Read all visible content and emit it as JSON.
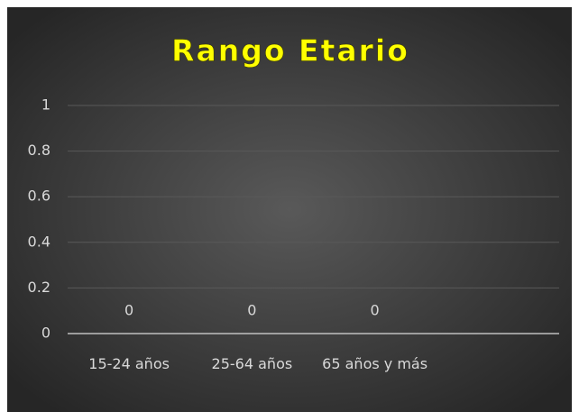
{
  "chart_data": {
    "type": "bar",
    "title": "Rango Etario",
    "categories": [
      "15-24 años",
      "25-64 años",
      "65 años y más",
      null
    ],
    "values": [
      0,
      0,
      0,
      null
    ],
    "color": "#4472c4",
    "ylim": [
      0,
      1
    ],
    "yticks": [
      0,
      0.2,
      0.4,
      0.6,
      0.8,
      1
    ],
    "grid": true,
    "data_labels": true
  }
}
